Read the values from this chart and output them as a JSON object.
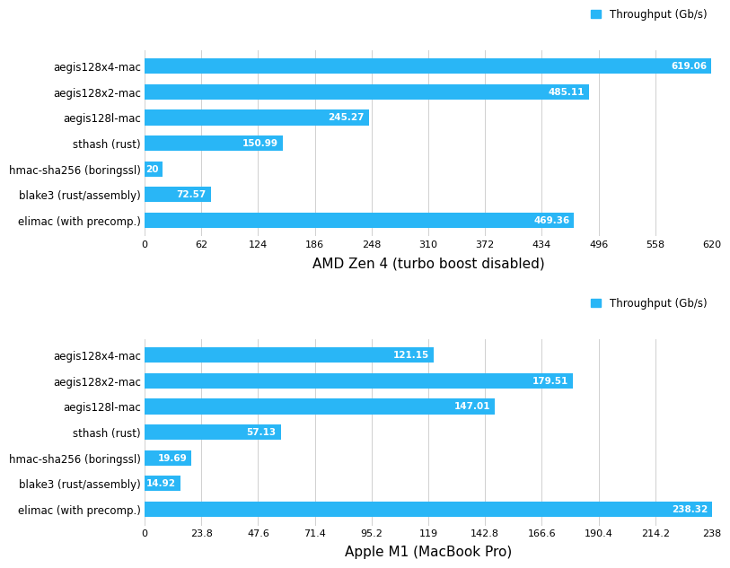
{
  "chart1": {
    "title": "AMD Zen 4 (turbo boost disabled)",
    "legend_label": "Throughput (Gb/s)",
    "categories": [
      "aegis128x4-mac",
      "aegis128x2-mac",
      "aegis128l-mac",
      "sthash (rust)",
      "hmac-sha256 (boringssl)",
      "blake3 (rust/assembly)",
      "elimac (with precomp.)"
    ],
    "values": [
      619.06,
      485.11,
      245.27,
      150.99,
      20,
      72.57,
      469.36
    ],
    "xlim": [
      0,
      620
    ],
    "xticks": [
      0,
      62,
      124,
      186,
      248,
      310,
      372,
      434,
      496,
      558,
      620
    ]
  },
  "chart2": {
    "title": "Apple M1 (MacBook Pro)",
    "legend_label": "Throughput (Gb/s)",
    "categories": [
      "aegis128x4-mac",
      "aegis128x2-mac",
      "aegis128l-mac",
      "sthash (rust)",
      "hmac-sha256 (boringssl)",
      "blake3 (rust/assembly)",
      "elimac (with precomp.)"
    ],
    "values": [
      121.15,
      179.51,
      147.01,
      57.13,
      19.69,
      14.92,
      238.32
    ],
    "xlim": [
      0,
      238
    ],
    "xticks": [
      0,
      23.8,
      47.6,
      71.4,
      95.2,
      119,
      142.8,
      166.6,
      190.4,
      214.2,
      238
    ]
  },
  "bar_color": "#29b6f6",
  "bar_label_color": "#ffffff",
  "background_color": "#ffffff",
  "grid_color": "#d0d0d0",
  "title_fontsize": 11,
  "label_fontsize": 8.5,
  "tick_fontsize": 8,
  "bar_label_fontsize": 7.5,
  "legend_fontsize": 8.5,
  "legend_color": "#29b6f6"
}
